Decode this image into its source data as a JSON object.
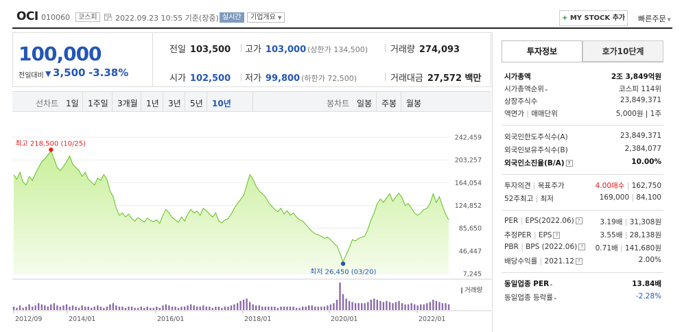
{
  "header": {
    "name": "OCI",
    "code": "010060",
    "market": "코스피",
    "datetime": "2022.09.23 10:55 기준(장중)",
    "realtime": "실시간",
    "company_info": "기업개요",
    "mystock": "MY STOCK 추가",
    "quick_order": "빠른주문"
  },
  "price": {
    "current": "100,000",
    "change_label": "전일대비",
    "change_arrow": "▼",
    "change": "3,500",
    "change_pct": "-3.38%"
  },
  "quote": {
    "prev_close_label": "전일",
    "prev_close": "103,500",
    "high_label": "고가",
    "high": "103,000",
    "upper_limit": "(상한가 134,500)",
    "volume_label": "거래량",
    "volume": "274,093",
    "open_label": "시가",
    "open": "102,500",
    "low_label": "저가",
    "low": "99,800",
    "lower_limit": "(하한가 72,500)",
    "amount_label": "거래대금",
    "amount": "27,572 백만"
  },
  "period_tabs": {
    "line_label": "선차트",
    "line": [
      "1일",
      "1주일",
      "3개월",
      "1년",
      "3년",
      "5년",
      "10년"
    ],
    "candle_label": "봉차트",
    "candle": [
      "일봉",
      "주봉",
      "월봉"
    ]
  },
  "chart_data": {
    "type": "area",
    "y_ticks": [
      "242,459",
      "203,257",
      "164,054",
      "124,852",
      "85,650",
      "46,447",
      "7,245"
    ],
    "ylim": [
      7245,
      242459
    ],
    "x_ticks": [
      "2012/09",
      "2014/01",
      "2016/01",
      "2018/01",
      "2020/01",
      "2022/01"
    ],
    "max_label": "최고 218,500 (10/25)",
    "min_label": "최저 26,450 (03/20)",
    "max_value": 218500,
    "min_value": 26450,
    "volume_label": "거래량",
    "series": [
      {
        "values": [
          178000,
          170000,
          182000,
          165000,
          160000,
          175000,
          168000,
          180000,
          190000,
          200000,
          205000,
          212000,
          218500,
          205000,
          190000,
          185000,
          192000,
          200000,
          210000,
          196000,
          190000,
          185000,
          175000,
          182000,
          170000,
          165000,
          160000,
          172000,
          168000,
          178000,
          170000,
          150000,
          140000,
          120000,
          108000,
          112000,
          105000,
          110000,
          102000,
          98000,
          104000,
          100000,
          96000,
          103000,
          99000,
          97000,
          100000,
          94000,
          108000,
          118000,
          112000,
          104000,
          100000,
          96000,
          105000,
          98000,
          110000,
          118000,
          112000,
          115000,
          108000,
          120000,
          116000,
          110000,
          105000,
          112000,
          98000,
          95000,
          100000,
          102000,
          110000,
          120000,
          128000,
          135000,
          142000,
          160000,
          178000,
          170000,
          158000,
          150000,
          145000,
          140000,
          130000,
          124000,
          118000,
          114000,
          120000,
          110000,
          116000,
          108000,
          112000,
          105000,
          100000,
          98000,
          92000,
          86000,
          80000,
          76000,
          74000,
          72000,
          68000,
          70000,
          66000,
          60000,
          55000,
          42000,
          28000,
          40000,
          52000,
          66000,
          64000,
          68000,
          70000,
          72000,
          84000,
          100000,
          112000,
          128000,
          136000,
          130000,
          138000,
          145000,
          132000,
          140000,
          146000,
          138000,
          125000,
          128000,
          120000,
          112000,
          108000,
          112000,
          118000,
          120000,
          128000,
          145000,
          130000,
          140000,
          124000,
          110000,
          100000
        ]
      }
    ],
    "volume": [
      3,
      2,
      4,
      2,
      3,
      5,
      3,
      4,
      6,
      5,
      4,
      3,
      5,
      6,
      4,
      3,
      4,
      5,
      3,
      4,
      3,
      2,
      4,
      3,
      3,
      2,
      3,
      4,
      3,
      2,
      3,
      5,
      6,
      4,
      3,
      3,
      2,
      3,
      3,
      2,
      2,
      3,
      2,
      3,
      2,
      2,
      3,
      2,
      4,
      5,
      4,
      3,
      3,
      2,
      3,
      3,
      4,
      5,
      4,
      3,
      3,
      4,
      3,
      3,
      2,
      3,
      3,
      2,
      3,
      3,
      4,
      5,
      6,
      8,
      9,
      10,
      7,
      5,
      4,
      4,
      3,
      3,
      3,
      3,
      3,
      2,
      3,
      3,
      3,
      3,
      3,
      2,
      2,
      3,
      3,
      4,
      4,
      3,
      3,
      3,
      3,
      4,
      5,
      6,
      9,
      24,
      14,
      10,
      8,
      7,
      6,
      6,
      6,
      6,
      7,
      9,
      10,
      9,
      8,
      7,
      8,
      7,
      6,
      7,
      8,
      6,
      5,
      5,
      6,
      5,
      4,
      5,
      5,
      6,
      7,
      9,
      8,
      7,
      6,
      6,
      5
    ]
  },
  "side": {
    "tabs": [
      "투자정보",
      "호가10단계"
    ],
    "rows": {
      "mcap_label": "시가총액",
      "mcap": "2조 3,849억원",
      "mcap_rank_label": "시가총액순위",
      "mcap_rank": "코스피 114위",
      "shares_label": "상장주식수",
      "shares": "23,849,371",
      "par_label": "액면가",
      "unit_label": "매매단위",
      "par_unit": "5,000원 | 1주",
      "foreign_limit_label": "외국인한도주식수(A)",
      "foreign_limit": "23,849,371",
      "foreign_hold_label": "외국인보유주식수(B)",
      "foreign_hold": "2,384,077",
      "foreign_ratio_label": "외국인소진율(B/A)",
      "foreign_ratio": "10.00%",
      "opinion_label": "투자의견",
      "target_label": "목표주가",
      "opinion": "4.00매수",
      "target": "162,750",
      "w52_label": "52주최고",
      "w52_low_label": "최저",
      "w52_high": "169,000",
      "w52_low": "84,100",
      "per_label": "PER",
      "eps_label": "EPS(2022.06)",
      "per": "3.19배",
      "eps": "31,308원",
      "eper_label": "추정PER",
      "eeps_label": "EPS",
      "eper": "3.55배",
      "eeps": "28,138원",
      "pbr_label": "PBR",
      "bps_label": "BPS (2022.06)",
      "pbr": "0.71배",
      "bps": "141,680원",
      "div_label": "배당수익률",
      "div_date": "2021.12",
      "div": "2.00%",
      "ind_per_label": "동일업종 PER",
      "ind_per": "13.84배",
      "ind_chg_label": "동일업종 등락률",
      "ind_chg": "-2.28%"
    }
  }
}
